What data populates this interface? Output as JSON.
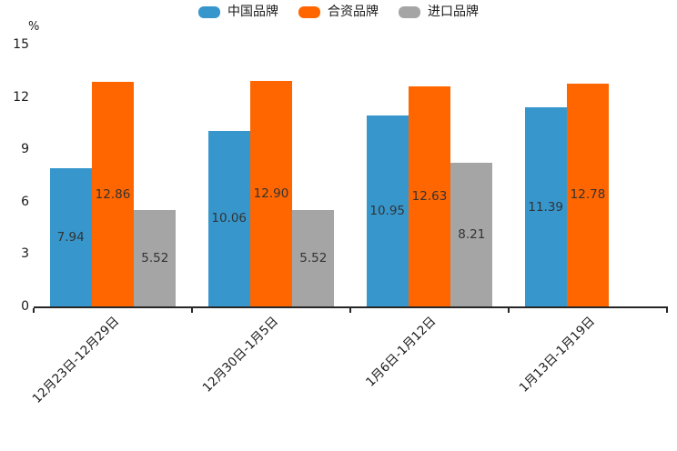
{
  "chart_data": {
    "type": "bar",
    "title": "",
    "unit_label": "%",
    "categories": [
      "12月23日-12月29日",
      "12月30日-1月5日",
      "1月6日-1月12日",
      "1月13日-1月19日"
    ],
    "series": [
      {
        "name": "中国品牌",
        "color": "#3797CD",
        "values": [
          7.94,
          10.06,
          10.95,
          11.39
        ]
      },
      {
        "name": "合资品牌",
        "color": "#FF6600",
        "values": [
          12.86,
          12.9,
          12.63,
          12.78
        ]
      },
      {
        "name": "进口品牌",
        "color": "#A5A5A5",
        "values": [
          5.52,
          5.52,
          8.21,
          null
        ]
      }
    ],
    "ylim": [
      0,
      15
    ],
    "yticks": [
      0,
      3,
      6,
      9,
      12,
      15
    ],
    "legend_position": "top",
    "grid": false,
    "value_labels": true,
    "value_label_decimals": 2
  },
  "colors": {
    "background": "#ffffff",
    "axis": "#262626",
    "tick_text": "#1a1a1a",
    "value_label_text": "#333333"
  }
}
